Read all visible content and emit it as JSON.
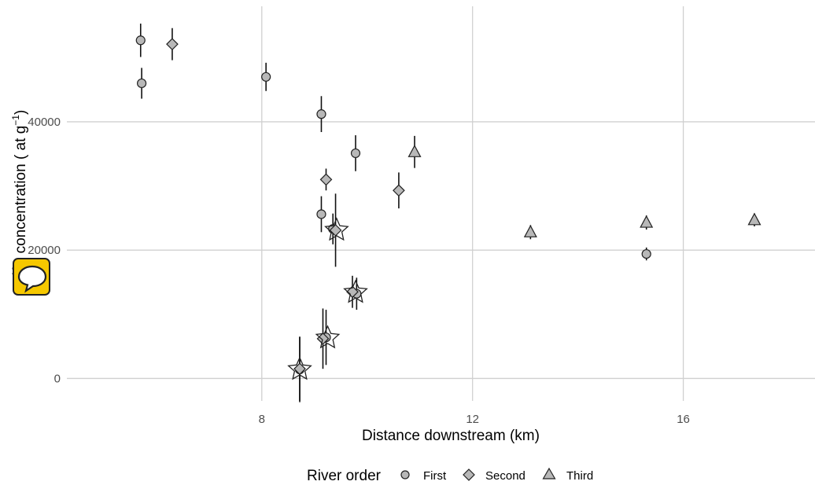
{
  "chart_data": {
    "type": "scatter",
    "xlabel": "Distance downstream (km)",
    "ylabel": "Be concentration ( at g⁻¹)",
    "ylabel_parts": {
      "prefix": "B",
      "sup_left": "10",
      "rest": "e concentration ( at g",
      "sup_right": "−1",
      "close": ")"
    },
    "xlim": [
      4.3,
      18.5
    ],
    "ylim": [
      -3500,
      58000
    ],
    "x_ticks": [
      {
        "value": 8,
        "label": "8"
      },
      {
        "value": 12,
        "label": "12"
      },
      {
        "value": 16,
        "label": "16"
      }
    ],
    "y_ticks": [
      {
        "value": 0,
        "label": "0"
      },
      {
        "value": 20000,
        "label": "20000"
      },
      {
        "value": 40000,
        "label": "40000"
      }
    ],
    "grid": true,
    "legend": {
      "title": "River order",
      "placement": "bottom",
      "entries": [
        {
          "label": "First",
          "shape": "circle"
        },
        {
          "label": "Second",
          "shape": "diamond"
        },
        {
          "label": "Third",
          "shape": "triangle"
        }
      ]
    },
    "series": [
      {
        "name": "First",
        "shape": "circle",
        "points": [
          {
            "x": 5.7,
            "y": 52700,
            "err": 2600
          },
          {
            "x": 5.72,
            "y": 46000,
            "err": 2400
          },
          {
            "x": 8.08,
            "y": 47000,
            "err": 2200
          },
          {
            "x": 9.13,
            "y": 41200,
            "err": 2800
          },
          {
            "x": 9.78,
            "y": 35100,
            "err": 2800
          },
          {
            "x": 9.13,
            "y": 25600,
            "err": 2800
          },
          {
            "x": 15.3,
            "y": 19400,
            "err": 1000
          },
          {
            "x": 9.35,
            "y": 23300,
            "err": 2400
          },
          {
            "x": 9.8,
            "y": 13200,
            "err": 2500
          },
          {
            "x": 9.22,
            "y": 6400,
            "err": 4300
          },
          {
            "x": 8.72,
            "y": 1400,
            "err": 5100
          }
        ]
      },
      {
        "name": "Second",
        "shape": "diamond",
        "points": [
          {
            "x": 6.3,
            "y": 52100,
            "err": 2500
          },
          {
            "x": 9.22,
            "y": 31000,
            "err": 1700
          },
          {
            "x": 10.6,
            "y": 29300,
            "err": 2800
          },
          {
            "x": 9.4,
            "y": 23100,
            "err": 5700
          },
          {
            "x": 9.72,
            "y": 13500,
            "err": 2500
          },
          {
            "x": 9.16,
            "y": 6200,
            "err": 4700
          },
          {
            "x": 8.72,
            "y": 1500,
            "err": 5000
          }
        ]
      },
      {
        "name": "Third",
        "shape": "triangle",
        "points": [
          {
            "x": 10.9,
            "y": 35300,
            "err": 2500
          },
          {
            "x": 13.1,
            "y": 22800,
            "err": 1100
          },
          {
            "x": 15.3,
            "y": 24300,
            "err": 1100
          },
          {
            "x": 17.35,
            "y": 24700,
            "err": 1000
          }
        ]
      }
    ],
    "starred": [
      {
        "x": 8.72,
        "y": 1400
      },
      {
        "x": 9.25,
        "y": 6300
      },
      {
        "x": 9.78,
        "y": 13400
      },
      {
        "x": 9.42,
        "y": 23100
      }
    ]
  },
  "overlay": {
    "chat_badge_icon": "speech-bubble-icon"
  }
}
